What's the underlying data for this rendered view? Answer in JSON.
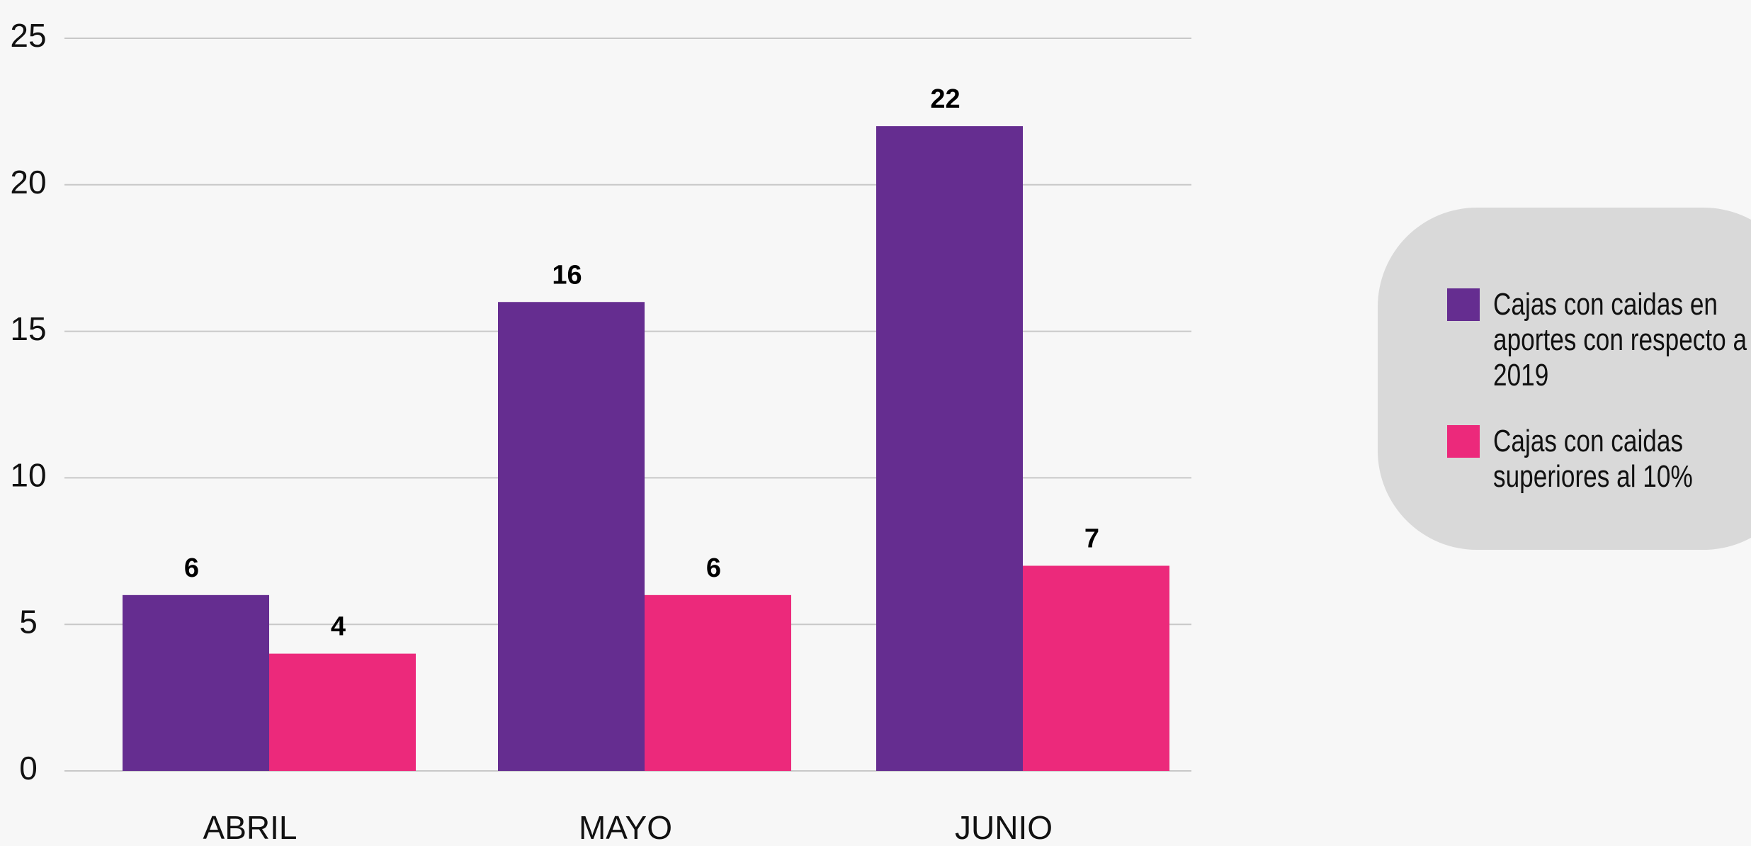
{
  "chart_data": {
    "type": "bar",
    "categories": [
      "ABRIL",
      "MAYO",
      "JUNIO"
    ],
    "series": [
      {
        "name": "Cajas con caidas en aportes con respecto a 2019",
        "color": "#652d90",
        "values": [
          6,
          16,
          22
        ]
      },
      {
        "name": "Cajas con caidas superiores al 10%",
        "color": "#ec297b",
        "values": [
          4,
          6,
          7
        ]
      }
    ],
    "ylim": [
      0,
      25
    ],
    "yticks": [
      0,
      5,
      10,
      15,
      20,
      25
    ],
    "grid": true,
    "legend": "right"
  }
}
